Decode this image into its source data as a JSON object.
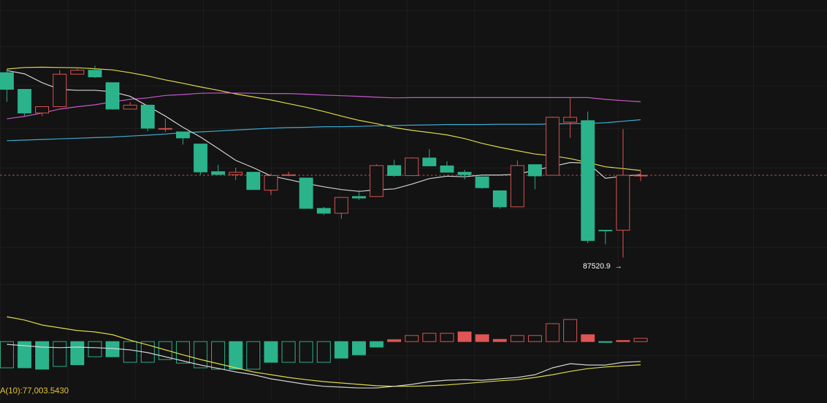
{
  "chart_data": {
    "type": "candlestick",
    "price_panel": {
      "candles": [
        {
          "o": 99880,
          "h": 100000,
          "l": 98920,
          "c": 99330
        },
        {
          "o": 99330,
          "h": 99330,
          "l": 98450,
          "c": 98550
        },
        {
          "o": 98550,
          "h": 98760,
          "l": 98450,
          "c": 98760
        },
        {
          "o": 98760,
          "h": 99960,
          "l": 98760,
          "c": 99830
        },
        {
          "o": 99830,
          "h": 100050,
          "l": 99830,
          "c": 99960
        },
        {
          "o": 99960,
          "h": 100110,
          "l": 99710,
          "c": 99740
        },
        {
          "o": 99550,
          "h": 99550,
          "l": 98660,
          "c": 98680
        },
        {
          "o": 98680,
          "h": 98910,
          "l": 98680,
          "c": 98810
        },
        {
          "o": 98810,
          "h": 98830,
          "l": 97950,
          "c": 98050
        },
        {
          "o": 98040,
          "h": 98360,
          "l": 97930,
          "c": 98040
        },
        {
          "o": 97930,
          "h": 97930,
          "l": 97510,
          "c": 97730
        },
        {
          "o": 97530,
          "h": 97530,
          "l": 96520,
          "c": 96610
        },
        {
          "o": 96620,
          "h": 96850,
          "l": 96500,
          "c": 96530
        },
        {
          "o": 96520,
          "h": 96750,
          "l": 96340,
          "c": 96600
        },
        {
          "o": 96600,
          "h": 96600,
          "l": 96010,
          "c": 96030
        },
        {
          "o": 96010,
          "h": 96560,
          "l": 95850,
          "c": 96490
        },
        {
          "o": 96490,
          "h": 96620,
          "l": 96470,
          "c": 96520
        },
        {
          "o": 96410,
          "h": 96410,
          "l": 95400,
          "c": 95410
        },
        {
          "o": 95410,
          "h": 95460,
          "l": 95190,
          "c": 95250
        },
        {
          "o": 95250,
          "h": 95780,
          "l": 95070,
          "c": 95770
        },
        {
          "o": 95800,
          "h": 96010,
          "l": 95690,
          "c": 95750
        },
        {
          "o": 95800,
          "h": 96860,
          "l": 95800,
          "c": 96820
        },
        {
          "o": 96820,
          "h": 97010,
          "l": 96450,
          "c": 96490
        },
        {
          "o": 96490,
          "h": 97090,
          "l": 96490,
          "c": 97070
        },
        {
          "o": 97070,
          "h": 97360,
          "l": 96810,
          "c": 96810
        },
        {
          "o": 96810,
          "h": 96960,
          "l": 96620,
          "c": 96600
        },
        {
          "o": 96600,
          "h": 96680,
          "l": 96360,
          "c": 96520
        },
        {
          "o": 96450,
          "h": 96450,
          "l": 96060,
          "c": 96090
        },
        {
          "o": 95990,
          "h": 95990,
          "l": 95400,
          "c": 95460
        },
        {
          "o": 95460,
          "h": 96990,
          "l": 95460,
          "c": 96820
        },
        {
          "o": 96850,
          "h": 96850,
          "l": 96040,
          "c": 96480
        },
        {
          "o": 96500,
          "h": 98430,
          "l": 96500,
          "c": 98410
        },
        {
          "o": 98250,
          "h": 99070,
          "l": 97730,
          "c": 98410
        },
        {
          "o": 98300,
          "h": 98600,
          "l": 94260,
          "c": 94350
        },
        {
          "o": 94690,
          "h": 94690,
          "l": 94230,
          "c": 94680
        },
        {
          "o": 94690,
          "h": 98020,
          "l": 93790,
          "c": 96500
        },
        {
          "o": 96500,
          "h": 96650,
          "l": 96310,
          "c": 96500
        }
      ],
      "ma_white": [
        99950,
        99840,
        99550,
        99330,
        99300,
        99300,
        99250,
        99100,
        98780,
        98450,
        98080,
        97760,
        97380,
        96990,
        96750,
        96480,
        96360,
        96230,
        96120,
        96030,
        95970,
        96020,
        96050,
        96210,
        96390,
        96470,
        96450,
        96510,
        96510,
        96530,
        96670,
        96790,
        96920,
        96900,
        96400,
        96470,
        96520
      ],
      "ma_yellow": [
        100000,
        100050,
        100060,
        100050,
        100040,
        100010,
        99970,
        99880,
        99770,
        99640,
        99530,
        99410,
        99300,
        99180,
        99080,
        98980,
        98860,
        98740,
        98600,
        98450,
        98310,
        98200,
        98070,
        97980,
        97910,
        97830,
        97710,
        97550,
        97420,
        97310,
        97200,
        97140,
        97050,
        96920,
        96780,
        96720,
        96660
      ],
      "ma_magenta": [
        98360,
        98440,
        98550,
        98680,
        98760,
        98820,
        98920,
        99000,
        99050,
        99130,
        99160,
        99200,
        99210,
        99210,
        99200,
        99190,
        99190,
        99170,
        99140,
        99120,
        99100,
        99070,
        99050,
        99060,
        99060,
        99060,
        99060,
        99060,
        99060,
        99060,
        99060,
        99060,
        99060,
        99060,
        99000,
        98960,
        98920
      ],
      "ma_blue": [
        97640,
        97660,
        97680,
        97700,
        97720,
        97740,
        97760,
        97790,
        97820,
        97860,
        97900,
        97930,
        97960,
        97990,
        98020,
        98050,
        98070,
        98080,
        98100,
        98100,
        98110,
        98130,
        98140,
        98150,
        98160,
        98170,
        98170,
        98170,
        98180,
        98180,
        98180,
        98190,
        98200,
        98210,
        98230,
        98280,
        98330
      ],
      "last_price": 96500,
      "low_annotation": "87520.9",
      "low_arrow": "→"
    },
    "volume_panel": {
      "bars": [
        {
          "v": -0.95,
          "dir": "down",
          "filled": false
        },
        {
          "v": -0.95,
          "dir": "down",
          "filled": true
        },
        {
          "v": -1.0,
          "dir": "down",
          "filled": true
        },
        {
          "v": -0.9,
          "dir": "down",
          "filled": false
        },
        {
          "v": -0.84,
          "dir": "down",
          "filled": true
        },
        {
          "v": -0.55,
          "dir": "down",
          "filled": false
        },
        {
          "v": -0.55,
          "dir": "down",
          "filled": true
        },
        {
          "v": -0.75,
          "dir": "down",
          "filled": false
        },
        {
          "v": -0.75,
          "dir": "down",
          "filled": false
        },
        {
          "v": -0.65,
          "dir": "down",
          "filled": false
        },
        {
          "v": -0.78,
          "dir": "down",
          "filled": false
        },
        {
          "v": -0.95,
          "dir": "down",
          "filled": false
        },
        {
          "v": -1.0,
          "dir": "down",
          "filled": false
        },
        {
          "v": -1.0,
          "dir": "down",
          "filled": true
        },
        {
          "v": -1.0,
          "dir": "down",
          "filled": false
        },
        {
          "v": -0.75,
          "dir": "down",
          "filled": true
        },
        {
          "v": -0.75,
          "dir": "down",
          "filled": false
        },
        {
          "v": -0.75,
          "dir": "down",
          "filled": false
        },
        {
          "v": -0.75,
          "dir": "down",
          "filled": false
        },
        {
          "v": -0.6,
          "dir": "down",
          "filled": true
        },
        {
          "v": -0.48,
          "dir": "down",
          "filled": true
        },
        {
          "v": -0.2,
          "dir": "down",
          "filled": true
        },
        {
          "v": 0.07,
          "dir": "up",
          "filled": true
        },
        {
          "v": 0.22,
          "dir": "up",
          "filled": false
        },
        {
          "v": 0.3,
          "dir": "up",
          "filled": false
        },
        {
          "v": 0.3,
          "dir": "up",
          "filled": false
        },
        {
          "v": 0.35,
          "dir": "up",
          "filled": true
        },
        {
          "v": 0.25,
          "dir": "up",
          "filled": true
        },
        {
          "v": 0.08,
          "dir": "up",
          "filled": true
        },
        {
          "v": 0.22,
          "dir": "up",
          "filled": false
        },
        {
          "v": 0.22,
          "dir": "up",
          "filled": false
        },
        {
          "v": 0.65,
          "dir": "up",
          "filled": false
        },
        {
          "v": 0.8,
          "dir": "up",
          "filled": false
        },
        {
          "v": 0.25,
          "dir": "up",
          "filled": true
        },
        {
          "v": -0.03,
          "dir": "down",
          "filled": true
        },
        {
          "v": 0.04,
          "dir": "up",
          "filled": true
        },
        {
          "v": 0.12,
          "dir": "up",
          "filled": false
        }
      ],
      "ma_white": [
        -0.1,
        -0.15,
        -0.2,
        -0.22,
        -0.2,
        -0.22,
        -0.25,
        -0.3,
        -0.4,
        -0.55,
        -0.7,
        -0.85,
        -0.97,
        -1.1,
        -1.2,
        -1.35,
        -1.45,
        -1.55,
        -1.62,
        -1.65,
        -1.68,
        -1.68,
        -1.62,
        -1.55,
        -1.45,
        -1.4,
        -1.38,
        -1.4,
        -1.35,
        -1.3,
        -1.2,
        -0.95,
        -0.8,
        -0.85,
        -0.85,
        -0.75,
        -0.72
      ],
      "ma_yellow": [
        0.9,
        0.78,
        0.6,
        0.5,
        0.4,
        0.35,
        0.25,
        0.05,
        -0.12,
        -0.3,
        -0.48,
        -0.65,
        -0.8,
        -0.95,
        -1.1,
        -1.2,
        -1.3,
        -1.38,
        -1.45,
        -1.5,
        -1.55,
        -1.6,
        -1.62,
        -1.62,
        -1.6,
        -1.57,
        -1.52,
        -1.47,
        -1.42,
        -1.38,
        -1.3,
        -1.2,
        -1.08,
        -0.98,
        -0.92,
        -0.88,
        -0.84
      ],
      "label": "A(10):77,003.5430"
    }
  }
}
